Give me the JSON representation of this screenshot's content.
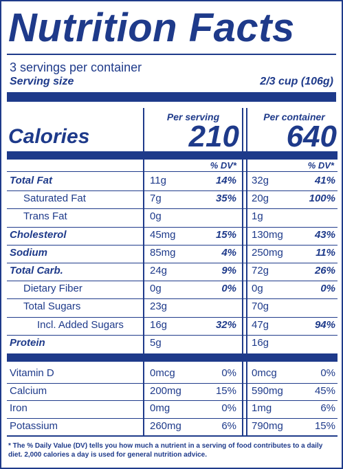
{
  "header": {
    "title": "Nutrition Facts",
    "servings": "3 servings per container",
    "serving_size_label": "Serving size",
    "serving_size_value": "2/3 cup (106g)"
  },
  "calories": {
    "label": "Calories",
    "per_serving_label": "Per serving",
    "per_container_label": "Per container",
    "per_serving": "210",
    "per_container": "640"
  },
  "dv_header": "% DV*",
  "nutrients": [
    {
      "name": "Total Fat",
      "style": "bold",
      "serving": "11g",
      "serving_dv": "14%",
      "container": "32g",
      "container_dv": "41%"
    },
    {
      "name": "Saturated Fat",
      "style": "i1",
      "serving": "7g",
      "serving_dv": "35%",
      "container": "20g",
      "container_dv": "100%"
    },
    {
      "name": "Trans Fat",
      "style": "i1",
      "serving": "0g",
      "serving_dv": "",
      "container": "1g",
      "container_dv": ""
    },
    {
      "name": "Cholesterol",
      "style": "bold",
      "serving": "45mg",
      "serving_dv": "15%",
      "container": "130mg",
      "container_dv": "43%"
    },
    {
      "name": "Sodium",
      "style": "bold",
      "serving": "85mg",
      "serving_dv": "4%",
      "container": "250mg",
      "container_dv": "11%"
    },
    {
      "name": "Total Carb.",
      "style": "bold",
      "serving": "24g",
      "serving_dv": "9%",
      "container": "72g",
      "container_dv": "26%"
    },
    {
      "name": "Dietary Fiber",
      "style": "i1",
      "serving": "0g",
      "serving_dv": "0%",
      "container": "0g",
      "container_dv": "0%"
    },
    {
      "name": "Total Sugars",
      "style": "i1",
      "serving": "23g",
      "serving_dv": "",
      "container": "70g",
      "container_dv": ""
    },
    {
      "name": "Incl. Added Sugars",
      "style": "i2",
      "serving": "16g",
      "serving_dv": "32%",
      "container": "47g",
      "container_dv": "94%"
    },
    {
      "name": "Protein",
      "style": "bold",
      "serving": "5g",
      "serving_dv": "",
      "container": "16g",
      "container_dv": ""
    }
  ],
  "vitamins": [
    {
      "name": "Vitamin D",
      "serving": "0mcg",
      "serving_dv": "0%",
      "container": "0mcg",
      "container_dv": "0%"
    },
    {
      "name": "Calcium",
      "serving": "200mg",
      "serving_dv": "15%",
      "container": "590mg",
      "container_dv": "45%"
    },
    {
      "name": "Iron",
      "serving": "0mg",
      "serving_dv": "0%",
      "container": "1mg",
      "container_dv": "6%"
    },
    {
      "name": "Potassium",
      "serving": "260mg",
      "serving_dv": "6%",
      "container": "790mg",
      "container_dv": "15%"
    }
  ],
  "footnote": "* The % Daily Value (DV) tells you how much a nutrient in a serving of food contributes to a daily diet. 2,000 calories a day is used for general nutrition advice.",
  "colors": {
    "primary": "#1e3a8a",
    "background": "#ffffff"
  }
}
